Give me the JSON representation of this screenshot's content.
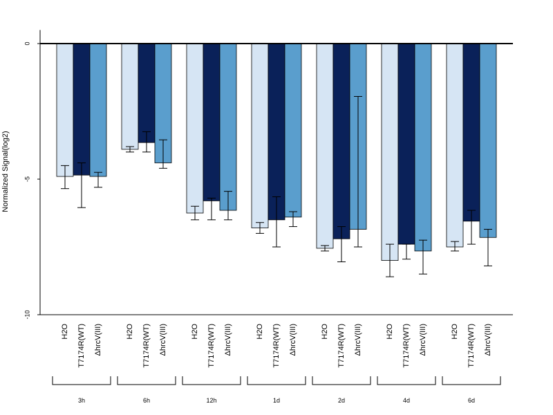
{
  "chart_data": {
    "type": "bar",
    "ylabel": "Normalized Signal(log2)",
    "xlabel": "",
    "ylim": [
      -10,
      0.5
    ],
    "yticks": [
      0,
      -5,
      -10
    ],
    "grid": false,
    "legend": "none",
    "groups": [
      "3h",
      "6h",
      "12h",
      "1d",
      "2d",
      "4d",
      "6d"
    ],
    "bar_labels": [
      "H2O",
      "T7174R(WT)",
      "ΔhrcV(III)"
    ],
    "series": [
      {
        "color": "#d6e5f4",
        "values": [
          -4.9,
          -3.9,
          -6.25,
          -6.8,
          -7.55,
          -8.0,
          -7.5
        ],
        "err_low": [
          -5.35,
          -4.0,
          -6.5,
          -7.0,
          -7.65,
          -8.6,
          -7.65
        ],
        "err_high": [
          -4.5,
          -3.8,
          -6.0,
          -6.6,
          -7.45,
          -7.4,
          -7.3
        ]
      },
      {
        "color": "#0a2159",
        "values": [
          -4.85,
          -3.65,
          -5.8,
          -6.5,
          -7.2,
          -7.4,
          -6.55
        ],
        "err_low": [
          -6.05,
          -4.0,
          -6.5,
          -7.5,
          -8.05,
          -7.95,
          -7.4
        ],
        "err_high": [
          -4.4,
          -3.25,
          -5.7,
          -5.65,
          -6.75,
          -7.4,
          -6.15
        ]
      },
      {
        "color": "#5a9ecd",
        "values": [
          -4.9,
          -4.4,
          -6.15,
          -6.4,
          -6.85,
          -7.65,
          -7.15
        ],
        "err_low": [
          -5.3,
          -4.6,
          -6.5,
          -6.75,
          -7.5,
          -8.5,
          -8.2
        ],
        "err_high": [
          -4.75,
          -3.55,
          -5.45,
          -6.2,
          -1.95,
          -7.25,
          -6.85
        ]
      }
    ]
  }
}
